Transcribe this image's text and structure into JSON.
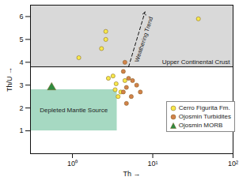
{
  "chart_data": {
    "type": "scatter",
    "x_label": "Th",
    "y_label": "Th/U",
    "log": "x",
    "xlim": [
      0.3,
      100
    ],
    "ylim": [
      0,
      6.5
    ],
    "xticks": [
      {
        "value": 1,
        "label": "10⁰"
      },
      {
        "value": 10,
        "label": "10¹"
      },
      {
        "value": 100,
        "label": "10²"
      }
    ],
    "yticks": [
      1,
      2,
      3,
      4,
      5,
      6
    ],
    "legend": "lower right",
    "series": [
      {
        "name": "Cerro Figurita Fm.",
        "color": "#f7e84a",
        "marker": "circle",
        "x": [
          1.2,
          2.6,
          2.6,
          2.3,
          2.8,
          3.2,
          3.5,
          3.4,
          3.7,
          4,
          4.5,
          37
        ],
        "values": [
          4.2,
          5.35,
          5.0,
          4.6,
          3.3,
          3.4,
          3.06,
          2.8,
          2.5,
          2.7,
          3.2,
          5.9
        ]
      },
      {
        "name": "Ojosmin Turbidites",
        "color": "#d2824a",
        "marker": "circle",
        "x": [
          4.5,
          4.3,
          5,
          4.7,
          5.6,
          6.3,
          5.4,
          4.7,
          7,
          4.3
        ],
        "values": [
          4.0,
          3.6,
          3.3,
          2.9,
          3.2,
          3.0,
          2.5,
          2.2,
          2.7,
          2.7
        ]
      },
      {
        "name": "Ojosmin MORB",
        "color": "#2e8b3e",
        "marker": "triangle",
        "x": [
          0.55
        ],
        "values": [
          2.9
        ]
      }
    ],
    "regions": [
      {
        "label": "Upper Continental Crust",
        "color": "#d9d9d9",
        "x": [
          0.3,
          100
        ],
        "y": [
          3.8,
          6.5
        ]
      },
      {
        "label": "Depleted Mantle Source",
        "color": "#a6d9c2",
        "x": [
          0.3,
          3.6
        ],
        "y": [
          1,
          2.8
        ]
      }
    ],
    "annotations": [
      {
        "text": "Weathering Trend",
        "x": [
          5,
          8
        ],
        "y": [
          3.8,
          6.2
        ],
        "line_style": "dashed"
      }
    ]
  }
}
